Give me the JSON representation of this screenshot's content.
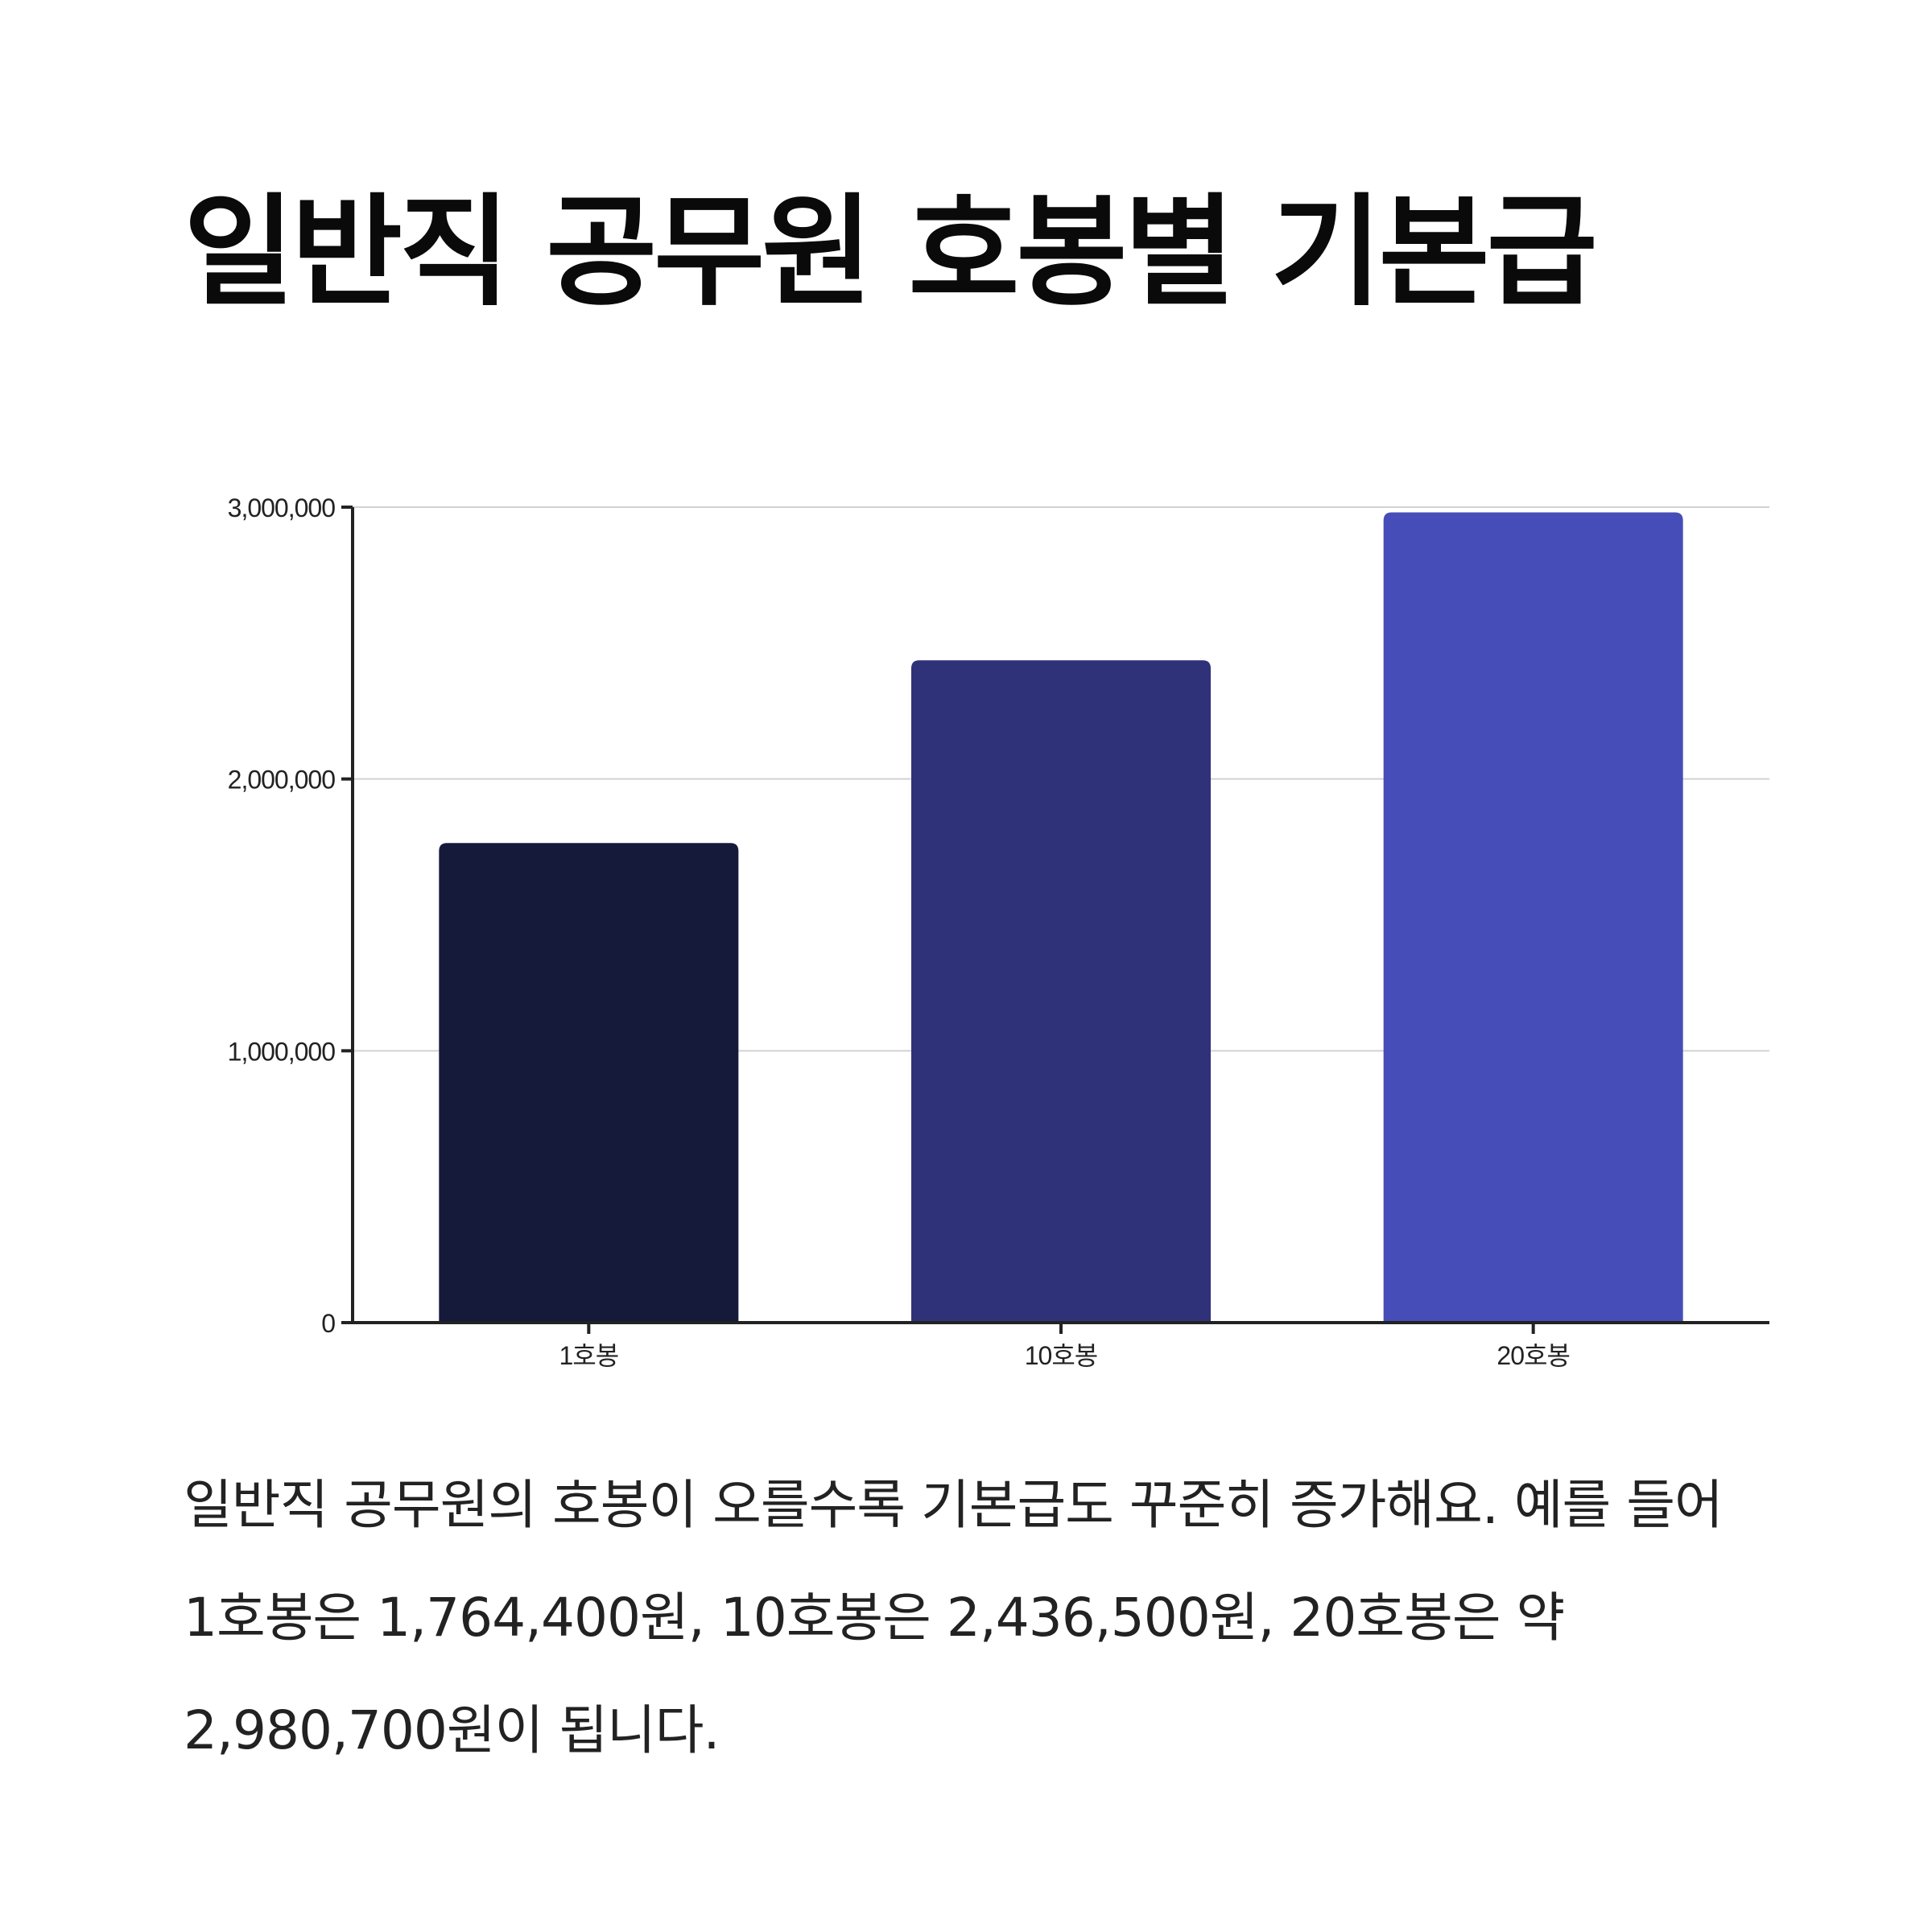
{
  "title": "일반직 공무원 호봉별 기본급",
  "caption": "일반직 공무원의 호봉이 오를수록 기본급도 꾸준히 증가해요. 예를 들어 1호봉은 1,764,400원, 10호봉은 2,436,500원, 20호봉은 약 2,980,700원이 됩니다.",
  "chart_data": {
    "type": "bar",
    "categories": [
      "1호봉",
      "10호봉",
      "20호봉"
    ],
    "values": [
      1764400,
      2436500,
      2980700
    ],
    "colors": [
      "#161a3a",
      "#2f3278",
      "#474db8"
    ],
    "ylim": [
      0,
      3000000
    ],
    "yticks": [
      0,
      1000000,
      2000000,
      3000000
    ],
    "ytick_labels": [
      "0",
      "1,000,000",
      "2,000,000",
      "3,000,000"
    ],
    "grid": true,
    "legend": "none",
    "xlabel": "",
    "ylabel": ""
  }
}
